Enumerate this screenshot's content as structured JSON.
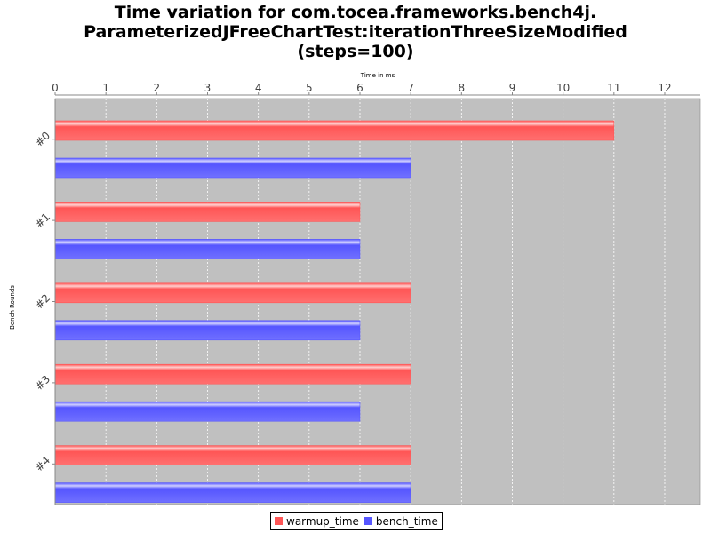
{
  "chart_data": {
    "type": "bar",
    "orientation": "horizontal",
    "title_lines": [
      "Time variation for com.tocea.frameworks.bench4j.",
      "ParameterizedJFreeChartTest:iterationThreeSizeModified",
      "(steps=100)"
    ],
    "xlabel": "Time in ms",
    "ylabel": "Bench Rounds",
    "xlim": [
      0,
      12.7
    ],
    "xticks": [
      0,
      1,
      2,
      3,
      4,
      5,
      6,
      7,
      8,
      9,
      10,
      11,
      12
    ],
    "x_axis_position": "top",
    "categories": [
      "#0",
      "#1",
      "#2",
      "#3",
      "#4"
    ],
    "series": [
      {
        "name": "warmup_time",
        "color": "#ff5555",
        "values": [
          11,
          6,
          7,
          7,
          7
        ]
      },
      {
        "name": "bench_time",
        "color": "#5555ff",
        "values": [
          7,
          6,
          6,
          6,
          7
        ]
      }
    ],
    "plot_background": "#c0c0c0",
    "grid": true,
    "legend_position": "bottom"
  }
}
